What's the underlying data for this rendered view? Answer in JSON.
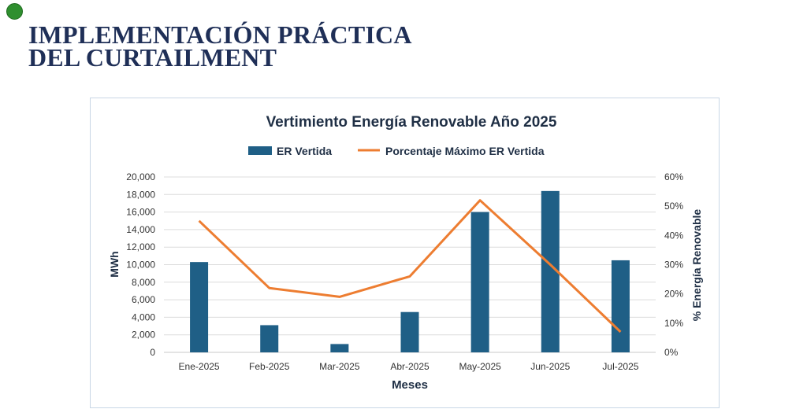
{
  "slide": {
    "title_line1": "IMPLEMENTACIÓN PRÁCTICA",
    "title_line2": "DEL CURTAILMENT"
  },
  "chart_data": {
    "type": "bar",
    "title": "Vertimiento Energía Renovable Año 2025",
    "categories": [
      "Ene-2025",
      "Feb-2025",
      "Mar-2025",
      "Abr-2025",
      "May-2025",
      "Jun-2025",
      "Jul-2025"
    ],
    "series": [
      {
        "name": "ER Vertida",
        "type": "bar",
        "axis": "left",
        "color": "#1f5f86",
        "values": [
          10300,
          3100,
          950,
          4600,
          16000,
          18400,
          10500
        ]
      },
      {
        "name": "Porcentaje Máximo ER Vertida",
        "type": "line",
        "axis": "right",
        "color": "#ed7d31",
        "values": [
          45,
          22,
          19,
          26,
          52,
          30,
          7
        ]
      }
    ],
    "xlabel": "Meses",
    "ylabel": "MWh",
    "ylabel_right": "% Energía Renovable",
    "ylim": [
      0,
      20000
    ],
    "ylim_right": [
      0,
      60
    ],
    "yticks": [
      "0",
      "2,000",
      "4,000",
      "6,000",
      "8,000",
      "10,000",
      "12,000",
      "14,000",
      "16,000",
      "18,000",
      "20,000"
    ],
    "yticks_right": [
      "0%",
      "10%",
      "20%",
      "30%",
      "40%",
      "50%",
      "60%"
    ],
    "legend_position": "top-center",
    "grid": true
  }
}
